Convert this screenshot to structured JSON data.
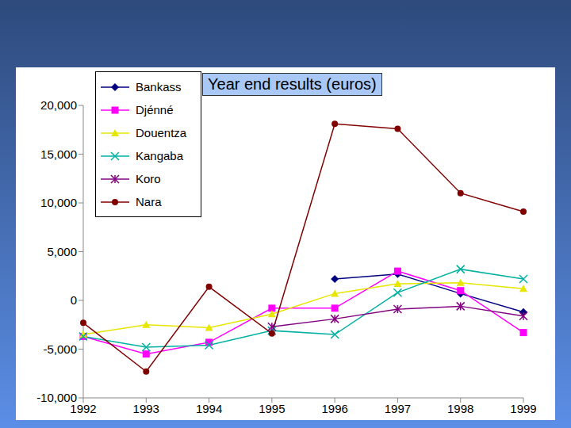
{
  "chart_data": {
    "type": "line",
    "title": "Year end results (euros)",
    "categories": [
      "1992",
      "1993",
      "1994",
      "1995",
      "1996",
      "1997",
      "1998",
      "1999"
    ],
    "series": [
      {
        "name": "Bankass",
        "color": "#000080",
        "marker": "diamond",
        "values": [
          null,
          null,
          null,
          null,
          2200,
          2700,
          700,
          -1200
        ]
      },
      {
        "name": "Djénné",
        "color": "#ff00ff",
        "marker": "square",
        "values": [
          -3700,
          -5500,
          -4300,
          -800,
          -800,
          3000,
          1000,
          -3300
        ]
      },
      {
        "name": "Douentza",
        "color": "#e6e600",
        "marker": "triangle",
        "values": [
          -3500,
          -2500,
          -2800,
          -1400,
          700,
          1700,
          1800,
          1200
        ]
      },
      {
        "name": "Kangaba",
        "color": "#00b0a0",
        "marker": "x",
        "values": [
          -3700,
          -4800,
          -4600,
          -3100,
          -3500,
          800,
          3200,
          2200
        ]
      },
      {
        "name": "Koro",
        "color": "#800080",
        "marker": "star",
        "values": [
          null,
          null,
          null,
          -2700,
          -1900,
          -900,
          -600,
          -1600
        ]
      },
      {
        "name": "Nara",
        "color": "#800000",
        "marker": "circle",
        "values": [
          -2300,
          -7300,
          1400,
          -3400,
          18100,
          17600,
          11000,
          9100
        ]
      }
    ],
    "ylim": [
      -10000,
      20000
    ],
    "yticks": [
      {
        "value": -10000,
        "label": "-10,000"
      },
      {
        "value": -5000,
        "label": "-5,000"
      },
      0,
      {
        "value": 5000,
        "label": "5,000"
      },
      {
        "value": 10000,
        "label": "10,000"
      },
      {
        "value": 15000,
        "label": "15,000"
      },
      {
        "value": 20000,
        "label": "20,000"
      }
    ],
    "grid": false,
    "legend": "top-left"
  }
}
